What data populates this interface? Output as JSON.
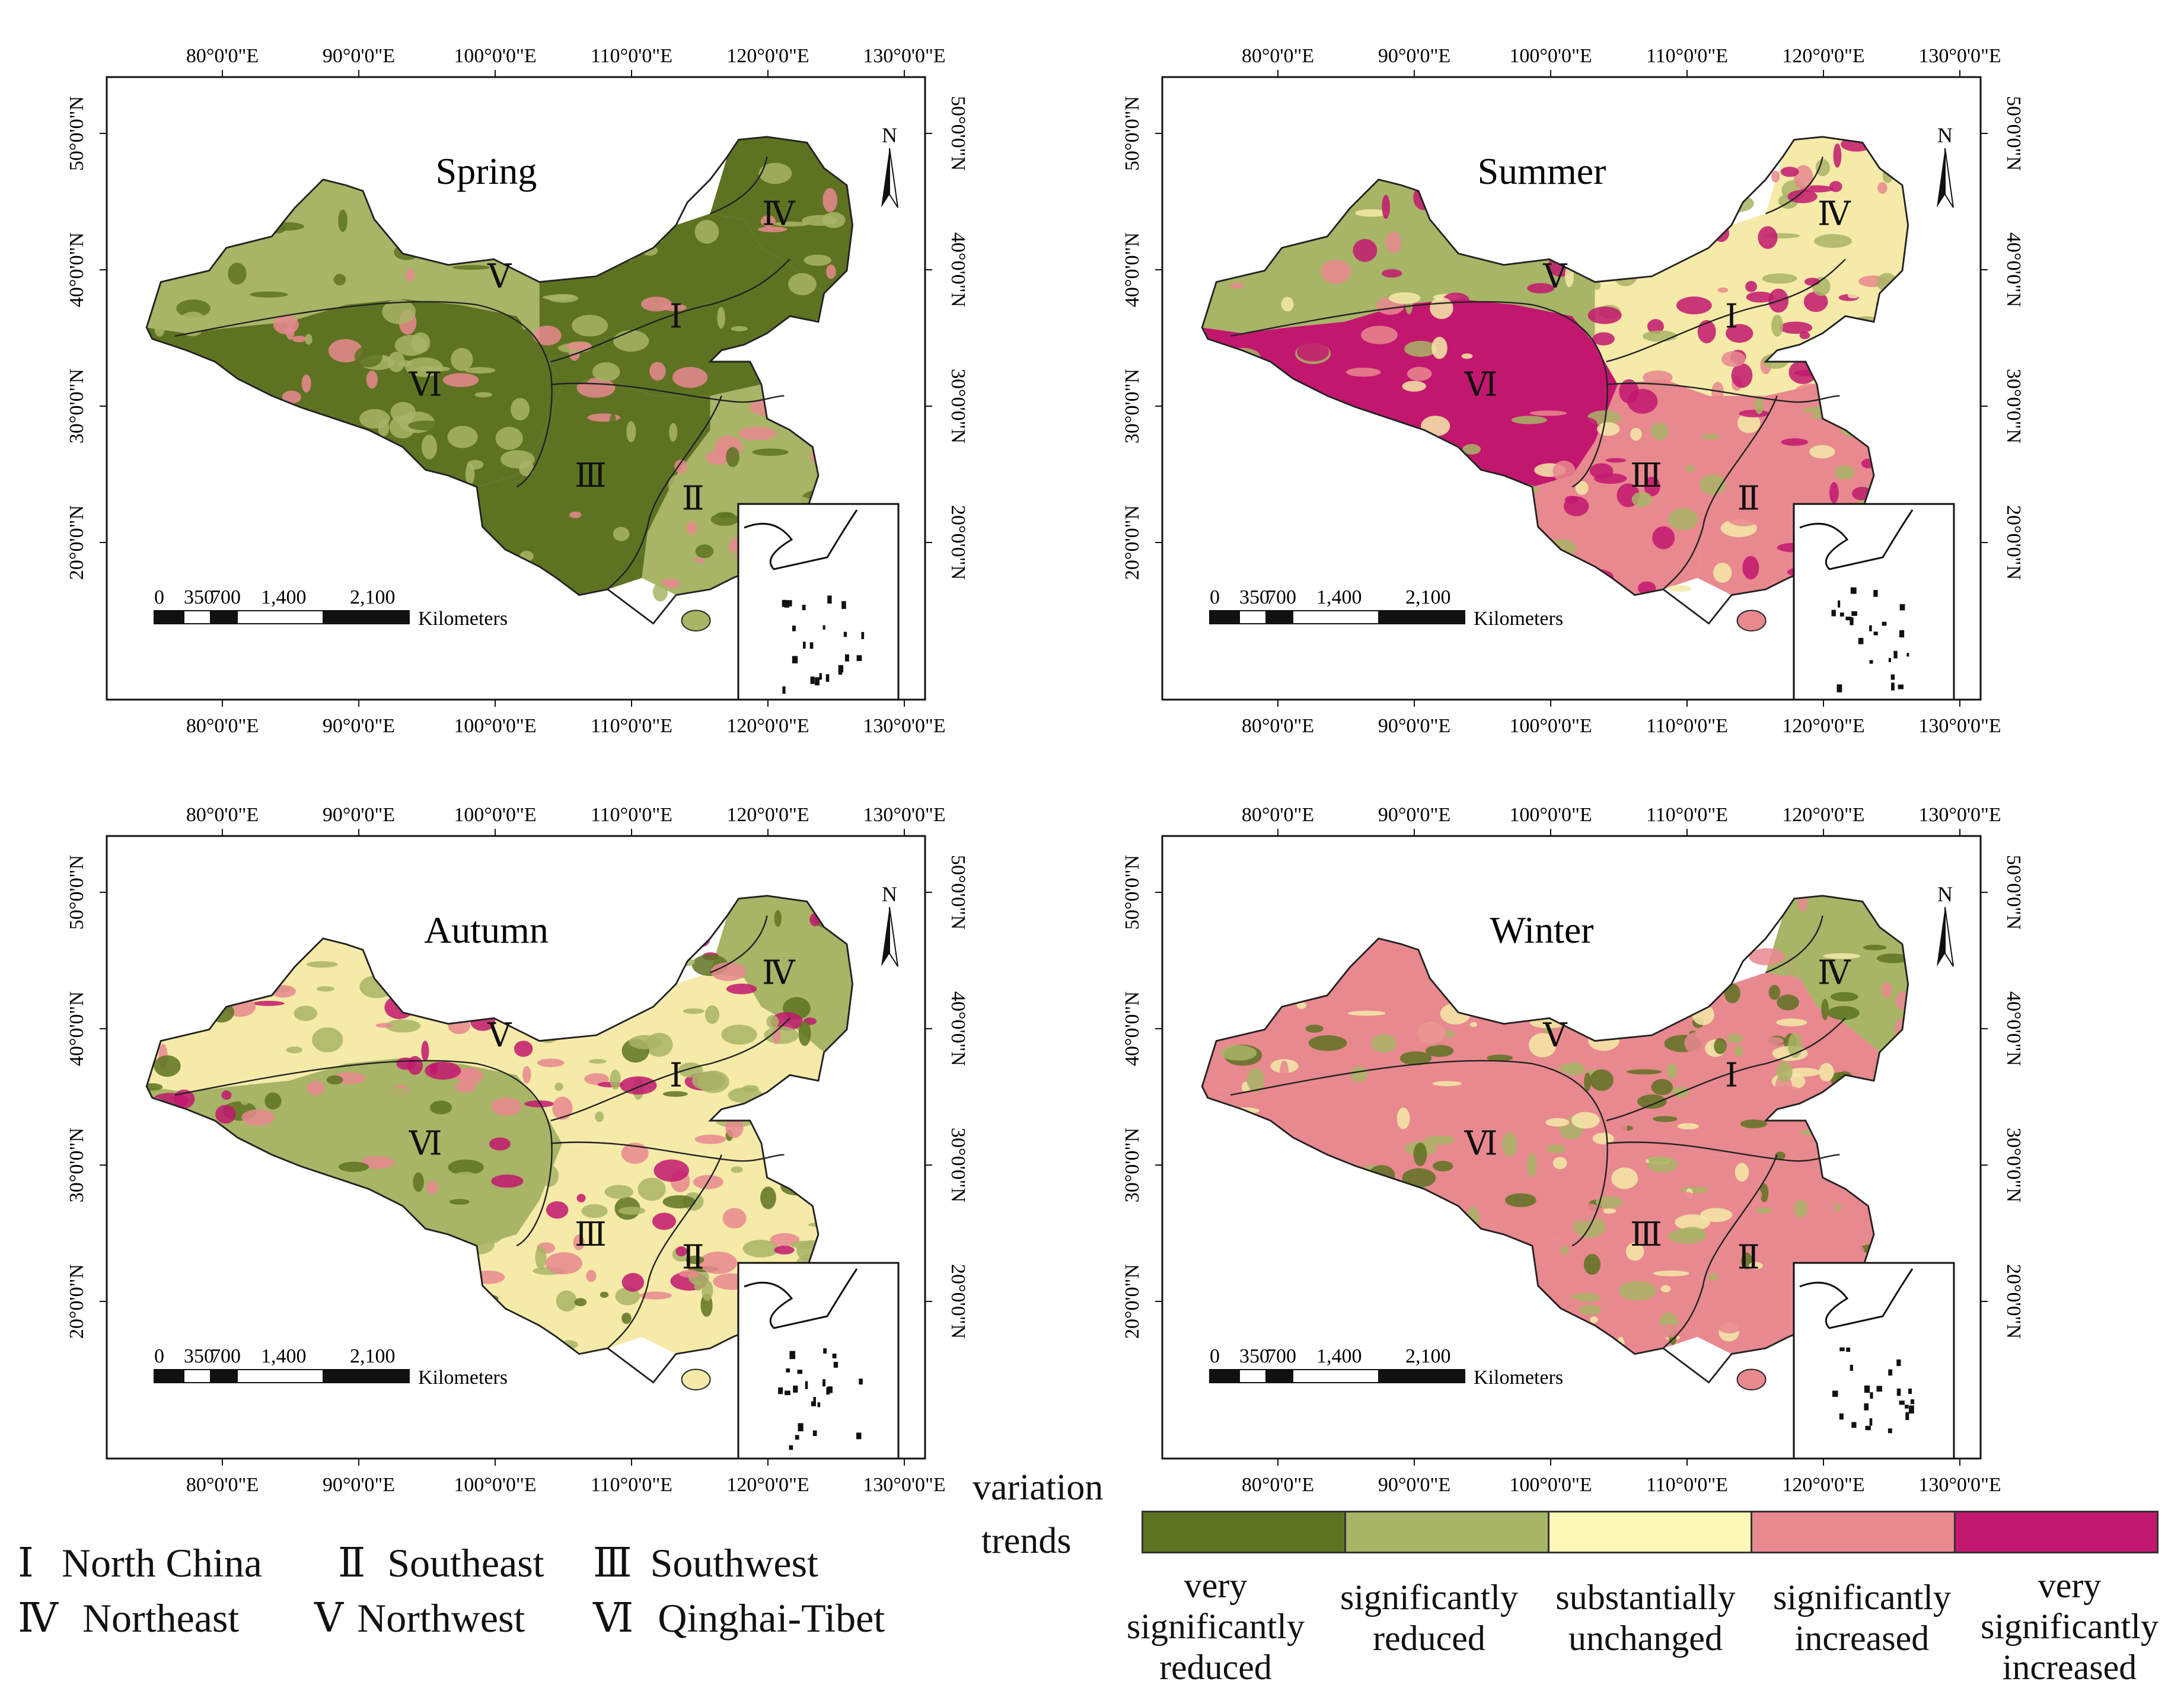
{
  "panels": [
    {
      "season": "Spring",
      "colors": [
        "#5e7322",
        "#a8b466",
        "#5e7322",
        "#5e7322",
        "#a8b466",
        "#5e7322"
      ],
      "patches": "spring"
    },
    {
      "season": "Summer",
      "colors": [
        "#f5eaa8",
        "#e8888f",
        "#e8888f",
        "#f5eaa8",
        "#a8b466",
        "#c2176e"
      ],
      "patches": "summer"
    },
    {
      "season": "Autumn",
      "colors": [
        "#f5eaa8",
        "#f5eaa8",
        "#f5eaa8",
        "#a8b466",
        "#f5eaa8",
        "#a8b466"
      ],
      "patches": "autumn"
    },
    {
      "season": "Winter",
      "colors": [
        "#e8888f",
        "#e8888f",
        "#e8888f",
        "#a8b466",
        "#e8888f",
        "#e8888f"
      ],
      "patches": "winter"
    }
  ],
  "axes": {
    "longitudes": [
      "80°0'0\"E",
      "90°0'0\"E",
      "100°0'0\"E",
      "110°0'0\"E",
      "120°0'0\"E",
      "130°0'0\"E"
    ],
    "latitudes": [
      "50°0'0\"N",
      "40°0'0\"N",
      "30°0'0\"N",
      "20°0'0\"N"
    ]
  },
  "region_labels": [
    "Ⅰ",
    "Ⅱ",
    "Ⅲ",
    "Ⅳ",
    "Ⅴ",
    "Ⅵ"
  ],
  "north_arrow": "N",
  "scalebar": {
    "ticks": [
      "0",
      "350",
      "700",
      "1,400",
      "2,100"
    ],
    "unit": "Kilometers"
  },
  "region_key": [
    {
      "numeral": "Ⅰ",
      "name": "North China"
    },
    {
      "numeral": "Ⅱ",
      "name": "Southeast"
    },
    {
      "numeral": "Ⅲ",
      "name": "Southwest"
    },
    {
      "numeral": "Ⅳ",
      "name": "Northeast"
    },
    {
      "numeral": "Ⅴ",
      "name": "Northwest"
    },
    {
      "numeral": "Ⅵ",
      "name": "Qinghai-Tibet"
    }
  ],
  "legend": {
    "title_line1": "variation",
    "title_line2": "trends",
    "classes": [
      {
        "label": "very significantly reduced",
        "color": "#5e7322"
      },
      {
        "label": "significantly reduced",
        "color": "#a8b466"
      },
      {
        "label": "substantially unchanged",
        "color": "#fdf8b8"
      },
      {
        "label": "significantly increased",
        "color": "#e8888f"
      },
      {
        "label": "very significantly increased",
        "color": "#c2176e"
      }
    ]
  }
}
